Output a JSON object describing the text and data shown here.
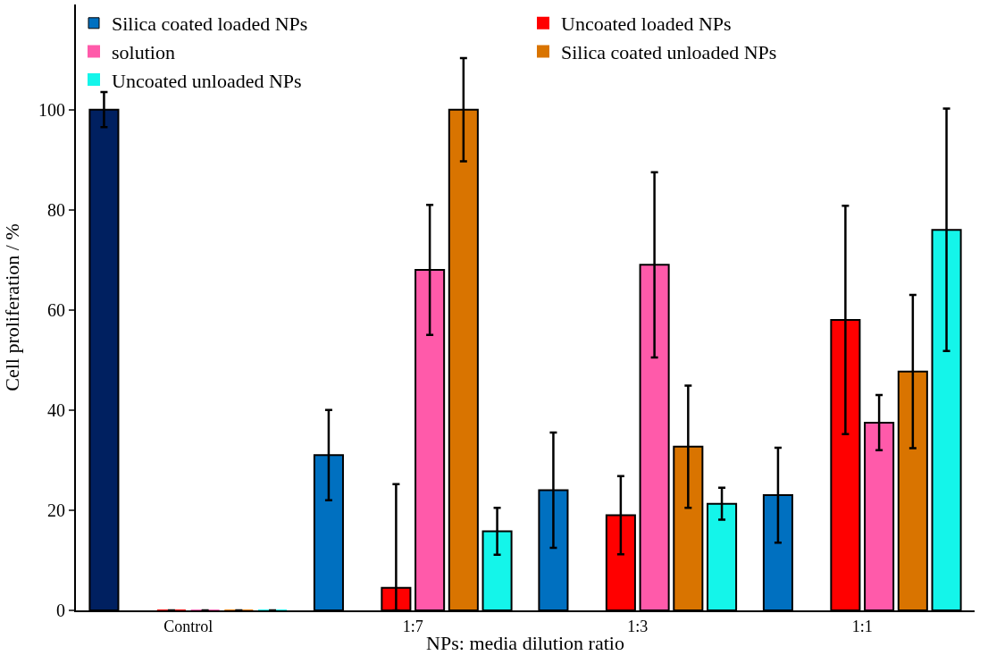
{
  "chart_data": {
    "type": "bar",
    "xlabel": "NPs: media dilution ratio",
    "ylabel": "Cell proliferation / %",
    "categories": [
      "Control",
      "1:7",
      "1:3",
      "1:1"
    ],
    "series": [
      {
        "name": "Silica coated loaded NPs",
        "color": "#0070c0",
        "colors": [
          "#002060",
          "#0070c0",
          "#0070c0",
          "#0070c0"
        ],
        "values": [
          100,
          31,
          24,
          23
        ],
        "errors": [
          3.5,
          9,
          11.5,
          9.5
        ]
      },
      {
        "name": "Uncoated loaded NPs",
        "color": "#ff0000",
        "values": [
          0,
          4.5,
          19,
          58
        ],
        "errors": [
          null,
          [
            0,
            25.2
          ],
          7.8,
          22.8
        ]
      },
      {
        "name": "solution",
        "color": "#ff5aaa",
        "values": [
          0,
          68,
          69,
          37.5
        ],
        "errors": [
          null,
          13,
          18.5,
          5.5
        ]
      },
      {
        "name": "Silica coated unloaded NPs",
        "color": "#d97400",
        "values": [
          0,
          100,
          32.7,
          47.7
        ],
        "errors": [
          null,
          10.3,
          12.2,
          15.3
        ]
      },
      {
        "name": "Uncoated unloaded NPs",
        "color": "#14f5ea",
        "values": [
          0,
          15.8,
          21.3,
          76
        ],
        "errors": [
          null,
          4.7,
          3.2,
          24.2
        ]
      }
    ],
    "ylim": [
      0,
      121
    ],
    "yticks": [
      0,
      20,
      40,
      60,
      80,
      100
    ],
    "legend": "top"
  }
}
